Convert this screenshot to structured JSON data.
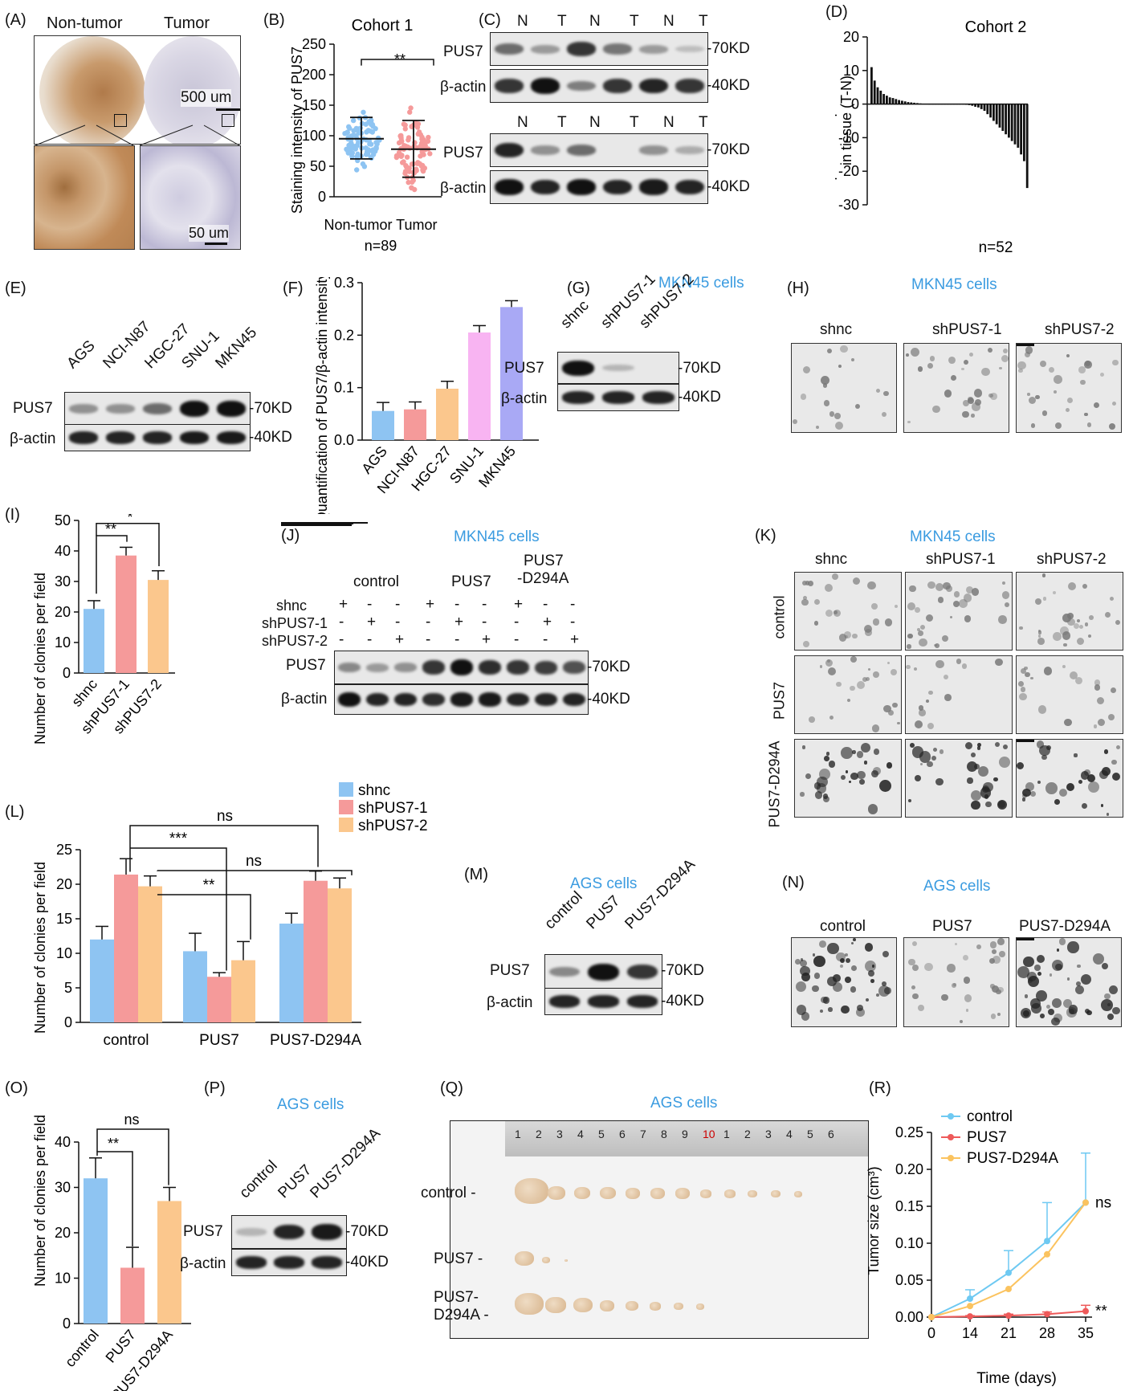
{
  "panel_labels": {
    "A": "(A)",
    "B": "(B)",
    "C": "(C)",
    "D": "(D)",
    "E": "(E)",
    "F": "(F)",
    "G": "(G)",
    "H": "(H)",
    "I": "(I)",
    "J": "(J)",
    "K": "(K)",
    "L": "(L)",
    "M": "(M)",
    "N": "(N)",
    "O": "(O)",
    "P": "(P)",
    "Q": "(Q)",
    "R": "(R)"
  },
  "A": {
    "non_tumor": "Non-tumor",
    "tumor": "Tumor",
    "scale1": "500 um",
    "scale2": "50 um"
  },
  "B": {
    "title": "Cohort 1",
    "ylabel": "Staining intensity of PUS7",
    "xlabel": "Non-tumor Tumor",
    "n": "n=89",
    "sig": "**",
    "ticks": [
      "0",
      "50",
      "100",
      "150",
      "200",
      "250"
    ]
  },
  "C": {
    "lanes": [
      "N",
      "T",
      "N",
      "T",
      "N",
      "T"
    ],
    "pus7": "PUS7",
    "actin": "β-actin",
    "kd70": "-70KD",
    "kd40": "-40KD"
  },
  "D": {
    "title": "Cohort 2",
    "ylabel": "Relative protein expression of PUS7 in tissue (T-N)",
    "n": "n=52",
    "ticks": [
      "20",
      "10",
      "0",
      "-10",
      "-20",
      "-30"
    ]
  },
  "E": {
    "lanes": [
      "AGS",
      "NCI-N87",
      "HGC-27",
      "SNU-1",
      "MKN45"
    ],
    "pus7": "PUS7",
    "actin": "β-actin",
    "kd70": "-70KD",
    "kd40": "-40KD"
  },
  "F": {
    "ylabel": "Quantification of PUS7/β-actin intensity",
    "ticks": [
      "0.0",
      "0.1",
      "0.2",
      "0.3"
    ]
  },
  "G": {
    "title": "MKN45 cells",
    "lanes": [
      "shnc",
      "shPUS7-1",
      "shPUS7-2"
    ],
    "pus7": "PUS7",
    "actin": "β-actin",
    "kd70": "-70KD",
    "kd40": "-40KD"
  },
  "H": {
    "title": "MKN45 cells",
    "cols": [
      "shnc",
      "shPUS7-1",
      "shPUS7-2"
    ]
  },
  "I": {
    "ylabel": "Number of clonies per field",
    "ticks": [
      "0",
      "10",
      "20",
      "30",
      "40",
      "50"
    ],
    "sig1": "**",
    "sig2": "*"
  },
  "J": {
    "title": "MKN45 cells",
    "groups": [
      "control",
      "PUS7",
      "PUS7\n-D294A"
    ],
    "group3a": "PUS7",
    "group3b": "-D294A",
    "rows": [
      "shnc",
      "shPUS7-1",
      "shPUS7-2"
    ],
    "signs": [
      [
        "+",
        "-",
        "-",
        "+",
        "-",
        "-",
        "+",
        "-",
        "-"
      ],
      [
        "-",
        "+",
        "-",
        "-",
        "+",
        "-",
        "-",
        "+",
        "-"
      ],
      [
        "-",
        "-",
        "+",
        "-",
        "-",
        "+",
        "-",
        "-",
        "+"
      ]
    ],
    "pus7": "PUS7",
    "actin": "β-actin",
    "kd70": "-70KD",
    "kd40": "-40KD"
  },
  "K": {
    "title": "MKN45 cells",
    "cols": [
      "shnc",
      "shPUS7-1",
      "shPUS7-2"
    ],
    "rows": [
      "control",
      "PUS7",
      "PUS7-D294A"
    ]
  },
  "L": {
    "ylabel": "Number of clonies per field",
    "ticks": [
      "0",
      "5",
      "10",
      "15",
      "20",
      "25"
    ],
    "legend": [
      "shnc",
      "shPUS7-1",
      "shPUS7-2"
    ],
    "sig": [
      "ns",
      "***",
      "ns",
      "**"
    ]
  },
  "M": {
    "title": "AGS cells",
    "lanes": [
      "control",
      "PUS7",
      "PUS7-D294A"
    ],
    "pus7": "PUS7",
    "actin": "β-actin",
    "kd70": "-70KD",
    "kd40": "-40KD"
  },
  "N": {
    "title": "AGS cells",
    "cols": [
      "control",
      "PUS7",
      "PUS7-D294A"
    ]
  },
  "O": {
    "ylabel": "Number of clonies per field",
    "ticks": [
      "0",
      "10",
      "20",
      "30",
      "40"
    ],
    "sig": [
      "ns",
      "**"
    ]
  },
  "P": {
    "title": "AGS cells",
    "lanes": [
      "control",
      "PUS7",
      "PUS7-D294A"
    ],
    "pus7": "PUS7",
    "actin": "β-actin",
    "kd70": "-70KD",
    "kd40": "-40KD"
  },
  "Q": {
    "title": "AGS cells",
    "rows": [
      "control",
      "PUS7",
      "PUS7-",
      "D294A"
    ],
    "ruler": [
      "1",
      "2",
      "3",
      "4",
      "5",
      "6",
      "7",
      "8",
      "9",
      "10",
      "1",
      "2",
      "3",
      "4",
      "5",
      "6"
    ]
  },
  "R": {
    "ylabel": "Tumor size (cm³)",
    "xlabel": "Time (days)",
    "ticks_y": [
      "0.00",
      "0.05",
      "0.10",
      "0.15",
      "0.20",
      "0.25"
    ],
    "ticks_x": [
      "0",
      "14",
      "21",
      "28",
      "35"
    ],
    "legend": [
      "control",
      "PUS7",
      "PUS7-D294A"
    ],
    "sig_ns": "ns",
    "sig_star": "**"
  },
  "colors": {
    "blue": "#8ec4f2",
    "red": "#f59a9a",
    "orange": "#fbc78d",
    "pink": "#f8b4f2",
    "purple": "#a9a9f5",
    "title_blue": "#3a9be0",
    "line_blue": "#6ec9f2",
    "line_red": "#ee5a5a",
    "line_orange": "#fbc35f"
  },
  "chart_data": [
    {
      "id": "B",
      "type": "scatter",
      "title": "Cohort 1",
      "ylabel": "Staining intensity of PUS7",
      "categories": [
        "Non-tumor",
        "Tumor"
      ],
      "ylim": [
        0,
        250
      ],
      "series": [
        {
          "name": "Non-tumor",
          "mean": 95,
          "sd_low": 62,
          "sd_high": 130
        },
        {
          "name": "Tumor",
          "mean": 78,
          "sd_low": 32,
          "sd_high": 125
        }
      ]
    },
    {
      "id": "D",
      "type": "bar",
      "title": "Cohort 2",
      "ylabel": "Relative protein expression of PUS7 in tissue (T-N)",
      "ylim": [
        -30,
        20
      ],
      "values": [
        11,
        7,
        5,
        4,
        3,
        2.5,
        2,
        1.8,
        1.5,
        1.2,
        1,
        0.8,
        0.6,
        0.5,
        0.4,
        0.3,
        0.2,
        0.1,
        0.1,
        0,
        0,
        0,
        0,
        0,
        0,
        0,
        0,
        0,
        0,
        0,
        -0.1,
        -0.2,
        -0.3,
        -0.5,
        -0.8,
        -1,
        -1.5,
        -2,
        -3,
        -4,
        -5,
        -6,
        -7,
        -8,
        -9,
        -10,
        -11,
        -12,
        -13,
        -15,
        -17,
        -25
      ]
    },
    {
      "id": "F",
      "type": "bar",
      "ylabel": "Quantification of PUS7/β-actin intensity",
      "categories": [
        "AGS",
        "NCI-N87",
        "HGC-27",
        "SNU-1",
        "MKN45"
      ],
      "values": [
        0.055,
        0.058,
        0.097,
        0.203,
        0.251
      ],
      "errors": [
        0.016,
        0.014,
        0.014,
        0.013,
        0.012
      ],
      "ylim": [
        0,
        0.3
      ]
    },
    {
      "id": "I",
      "type": "bar",
      "ylabel": "Number of clonies per field",
      "categories": [
        "shnc",
        "shPUS7-1",
        "shPUS7-2"
      ],
      "values": [
        21,
        38.5,
        30.5
      ],
      "errors": [
        2.7,
        2.7,
        3
      ],
      "ylim": [
        0,
        50
      ]
    },
    {
      "id": "L",
      "type": "bar",
      "ylabel": "Number of clonies per field",
      "categories": [
        "control",
        "PUS7",
        "PUS7-D294A"
      ],
      "ylim": [
        0,
        25
      ],
      "series": [
        {
          "name": "shnc",
          "values": [
            12,
            10.3,
            14.3
          ],
          "errors": [
            1.9,
            2.6,
            1.5
          ]
        },
        {
          "name": "shPUS7-1",
          "values": [
            21.4,
            6.6,
            20.5
          ],
          "errors": [
            2.3,
            0.6,
            1.4
          ]
        },
        {
          "name": "shPUS7-2",
          "values": [
            19.7,
            9,
            19.4
          ],
          "errors": [
            1.5,
            2.7,
            1.5
          ]
        }
      ]
    },
    {
      "id": "O",
      "type": "bar",
      "ylabel": "Number of clonies per field",
      "categories": [
        "control",
        "PUS7",
        "PUS7-D294A"
      ],
      "values": [
        32,
        12.3,
        27
      ],
      "errors": [
        4.5,
        4.5,
        3
      ],
      "ylim": [
        0,
        40
      ]
    },
    {
      "id": "R",
      "type": "line",
      "xlabel": "Time (days)",
      "ylabel": "Tumor size (cm³)",
      "x": [
        0,
        14,
        21,
        28,
        35
      ],
      "ylim": [
        0,
        0.25
      ],
      "series": [
        {
          "name": "control",
          "values": [
            0,
            0.025,
            0.06,
            0.103,
            0.155
          ],
          "errors": [
            0,
            0.012,
            0.03,
            0.052,
            0.067
          ]
        },
        {
          "name": "PUS7",
          "values": [
            0,
            0.001,
            0.002,
            0.004,
            0.008
          ],
          "errors": [
            0,
            0.001,
            0.002,
            0.003,
            0.008
          ]
        },
        {
          "name": "PUS7-D294A",
          "values": [
            0,
            0.015,
            0.038,
            0.085,
            0.155
          ],
          "errors": [
            0,
            0,
            0,
            0,
            0
          ]
        }
      ]
    }
  ]
}
